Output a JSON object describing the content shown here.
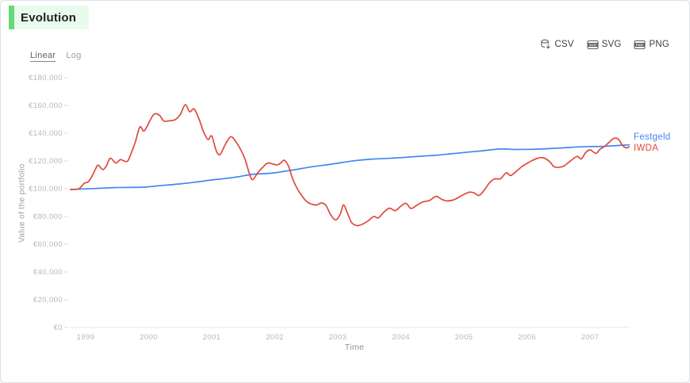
{
  "window": {
    "title": "Evolution"
  },
  "controls": {
    "linear_label": "Linear",
    "log_label": "Log"
  },
  "export": {
    "csv_label": "CSV",
    "svg_label": "SVG",
    "png_label": "PNG",
    "svg_badge_text": "SVG",
    "png_badge_text": "PNG"
  },
  "chart_data": {
    "type": "line",
    "title": "Evolution",
    "xlabel": "Time",
    "ylabel": "Value of the portfolio",
    "currency": "EUR",
    "grid": false,
    "legend_position": "right of line ends",
    "xlim": [
      1998.72,
      2007.66
    ],
    "ylim": [
      0,
      185000
    ],
    "x_ticks": [
      1999,
      2000,
      2001,
      2002,
      2003,
      2004,
      2005,
      2006,
      2007
    ],
    "y_ticks": [
      {
        "value": 0,
        "label": "€0"
      },
      {
        "value": 20000,
        "label": "€20,000"
      },
      {
        "value": 40000,
        "label": "€40,000"
      },
      {
        "value": 60000,
        "label": "€60,000"
      },
      {
        "value": 80000,
        "label": "€80,000"
      },
      {
        "value": 100000,
        "label": "€100,000"
      },
      {
        "value": 120000,
        "label": "€120,000"
      },
      {
        "value": 140000,
        "label": "€140,000"
      },
      {
        "value": 160000,
        "label": "€160,000"
      },
      {
        "value": 180000,
        "label": "€180,000"
      }
    ],
    "series": [
      {
        "name": "Festgeld",
        "color": "#4285f4",
        "points": [
          [
            1998.76,
            99500
          ],
          [
            1998.95,
            99800
          ],
          [
            1999.2,
            100300
          ],
          [
            1999.45,
            100800
          ],
          [
            1999.7,
            100900
          ],
          [
            1999.95,
            101200
          ],
          [
            2000.13,
            102000
          ],
          [
            2000.5,
            103500
          ],
          [
            2000.8,
            105100
          ],
          [
            2001.0,
            106300
          ],
          [
            2001.2,
            107300
          ],
          [
            2001.43,
            108700
          ],
          [
            2001.63,
            110300
          ],
          [
            2001.85,
            110900
          ],
          [
            2002.0,
            111500
          ],
          [
            2002.3,
            113600
          ],
          [
            2002.6,
            115900
          ],
          [
            2002.9,
            117700
          ],
          [
            2003.2,
            119800
          ],
          [
            2003.5,
            121200
          ],
          [
            2003.8,
            121900
          ],
          [
            2004.0,
            122400
          ],
          [
            2004.3,
            123400
          ],
          [
            2004.6,
            124300
          ],
          [
            2004.8,
            125200
          ],
          [
            2005.0,
            126100
          ],
          [
            2005.3,
            127400
          ],
          [
            2005.57,
            128600
          ],
          [
            2005.82,
            128300
          ],
          [
            2006.08,
            128400
          ],
          [
            2006.3,
            128800
          ],
          [
            2006.55,
            129400
          ],
          [
            2006.8,
            130100
          ],
          [
            2007.0,
            130400
          ],
          [
            2007.2,
            130500
          ],
          [
            2007.42,
            131100
          ],
          [
            2007.62,
            131600
          ]
        ]
      },
      {
        "name": "IWDA",
        "color": "#e0493b",
        "points": [
          [
            1998.76,
            99500
          ],
          [
            1998.88,
            99700
          ],
          [
            1998.93,
            101500
          ],
          [
            1998.98,
            104000
          ],
          [
            1999.04,
            105000
          ],
          [
            1999.1,
            109000
          ],
          [
            1999.16,
            114500
          ],
          [
            1999.2,
            117000
          ],
          [
            1999.27,
            113800
          ],
          [
            1999.33,
            116500
          ],
          [
            1999.39,
            122000
          ],
          [
            1999.48,
            118500
          ],
          [
            1999.55,
            121000
          ],
          [
            1999.62,
            119800
          ],
          [
            1999.67,
            120200
          ],
          [
            1999.73,
            126500
          ],
          [
            1999.79,
            134000
          ],
          [
            1999.86,
            144500
          ],
          [
            1999.92,
            141500
          ],
          [
            1999.98,
            145500
          ],
          [
            2000.08,
            153500
          ],
          [
            2000.17,
            153000
          ],
          [
            2000.24,
            148800
          ],
          [
            2000.33,
            149000
          ],
          [
            2000.42,
            149800
          ],
          [
            2000.5,
            153500
          ],
          [
            2000.58,
            160500
          ],
          [
            2000.65,
            155500
          ],
          [
            2000.72,
            157500
          ],
          [
            2000.8,
            150000
          ],
          [
            2000.87,
            141000
          ],
          [
            2000.94,
            135500
          ],
          [
            2001.0,
            138000
          ],
          [
            2001.07,
            127500
          ],
          [
            2001.13,
            124500
          ],
          [
            2001.21,
            131500
          ],
          [
            2001.3,
            137500
          ],
          [
            2001.38,
            134000
          ],
          [
            2001.46,
            128000
          ],
          [
            2001.53,
            121000
          ],
          [
            2001.6,
            110500
          ],
          [
            2001.65,
            106500
          ],
          [
            2001.73,
            111500
          ],
          [
            2001.81,
            115500
          ],
          [
            2001.89,
            118500
          ],
          [
            2001.97,
            117800
          ],
          [
            2002.04,
            117200
          ],
          [
            2002.1,
            118800
          ],
          [
            2002.15,
            120500
          ],
          [
            2002.22,
            116000
          ],
          [
            2002.28,
            107500
          ],
          [
            2002.35,
            100500
          ],
          [
            2002.42,
            95500
          ],
          [
            2002.5,
            91000
          ],
          [
            2002.58,
            89000
          ],
          [
            2002.66,
            88300
          ],
          [
            2002.74,
            89700
          ],
          [
            2002.81,
            88000
          ],
          [
            2002.89,
            81000
          ],
          [
            2002.97,
            77500
          ],
          [
            2003.04,
            82000
          ],
          [
            2003.09,
            88300
          ],
          [
            2003.16,
            81500
          ],
          [
            2003.22,
            75500
          ],
          [
            2003.3,
            73500
          ],
          [
            2003.38,
            74200
          ],
          [
            2003.47,
            76500
          ],
          [
            2003.57,
            80000
          ],
          [
            2003.64,
            79000
          ],
          [
            2003.74,
            83500
          ],
          [
            2003.82,
            86000
          ],
          [
            2003.91,
            84200
          ],
          [
            2004.0,
            87500
          ],
          [
            2004.08,
            89500
          ],
          [
            2004.16,
            85800
          ],
          [
            2004.25,
            88000
          ],
          [
            2004.35,
            90500
          ],
          [
            2004.45,
            91500
          ],
          [
            2004.56,
            94500
          ],
          [
            2004.65,
            92300
          ],
          [
            2004.74,
            91200
          ],
          [
            2004.85,
            92200
          ],
          [
            2004.96,
            95000
          ],
          [
            2005.08,
            97500
          ],
          [
            2005.16,
            97000
          ],
          [
            2005.24,
            95200
          ],
          [
            2005.33,
            99500
          ],
          [
            2005.4,
            104000
          ],
          [
            2005.48,
            107000
          ],
          [
            2005.58,
            107200
          ],
          [
            2005.67,
            111500
          ],
          [
            2005.74,
            109500
          ],
          [
            2005.83,
            112500
          ],
          [
            2005.92,
            116000
          ],
          [
            2006.01,
            118500
          ],
          [
            2006.09,
            120500
          ],
          [
            2006.17,
            122000
          ],
          [
            2006.26,
            122300
          ],
          [
            2006.36,
            119500
          ],
          [
            2006.43,
            115800
          ],
          [
            2006.52,
            115500
          ],
          [
            2006.59,
            116500
          ],
          [
            2006.66,
            119000
          ],
          [
            2006.73,
            121500
          ],
          [
            2006.8,
            123300
          ],
          [
            2006.86,
            121500
          ],
          [
            2006.93,
            126000
          ],
          [
            2007.0,
            128000
          ],
          [
            2007.09,
            125500
          ],
          [
            2007.16,
            128500
          ],
          [
            2007.23,
            130500
          ],
          [
            2007.29,
            133000
          ],
          [
            2007.36,
            135800
          ],
          [
            2007.41,
            136500
          ],
          [
            2007.46,
            135200
          ],
          [
            2007.51,
            131500
          ],
          [
            2007.57,
            129500
          ],
          [
            2007.62,
            130200
          ]
        ]
      }
    ]
  }
}
